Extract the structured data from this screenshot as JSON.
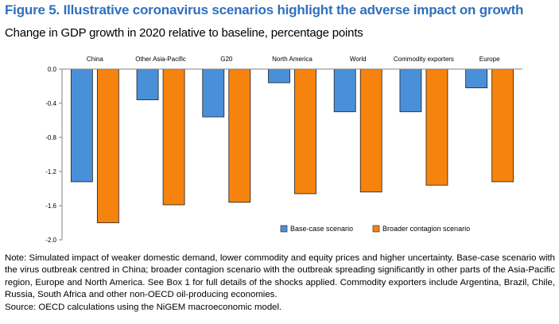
{
  "figure": {
    "title": "Figure 5. Illustrative coronavirus scenarios highlight the adverse impact on growth",
    "subtitle": "Change in GDP growth in 2020 relative to baseline, percentage points"
  },
  "chart_data": {
    "type": "bar",
    "title": "Change in GDP growth in 2020 relative to baseline, percentage points",
    "categories": [
      "China",
      "Other Asia-Pacific",
      "G20",
      "North America",
      "World",
      "Commodity exporters",
      "Europe"
    ],
    "series": [
      {
        "name": "Base-case scenario",
        "color": "#4a90d9",
        "values": [
          -1.32,
          -0.36,
          -0.56,
          -0.16,
          -0.5,
          -0.5,
          -0.22
        ]
      },
      {
        "name": "Broader contagion scenario",
        "color": "#f7830f",
        "values": [
          -1.8,
          -1.59,
          -1.56,
          -1.46,
          -1.44,
          -1.36,
          -1.32
        ]
      }
    ],
    "ylim": [
      -2.0,
      0.0
    ],
    "yticks": [
      "0.0",
      "-0.4",
      "-0.8",
      "-1.2",
      "-1.6",
      "-2.0"
    ],
    "ytick_values": [
      0.0,
      -0.4,
      -0.8,
      -1.2,
      -1.6,
      -2.0
    ],
    "xlabel": "",
    "ylabel": "",
    "legend_position": "bottom-right",
    "category_labels_position": "top"
  },
  "notes": {
    "note": "Note: Simulated impact of weaker domestic demand, lower commodity and equity prices and higher uncertainty. Base-case scenario with the virus outbreak centred in China; broader contagion scenario with the outbreak spreading significantly in other parts of the Asia-Pacific region, Europe and North America. See Box 1 for full details of the shocks applied. Commodity exporters include Argentina, Brazil, Chile, Russia, South Africa and other non-OECD oil-producing economies.",
    "source": "Source: OECD calculations using the NiGEM macroeconomic model."
  }
}
